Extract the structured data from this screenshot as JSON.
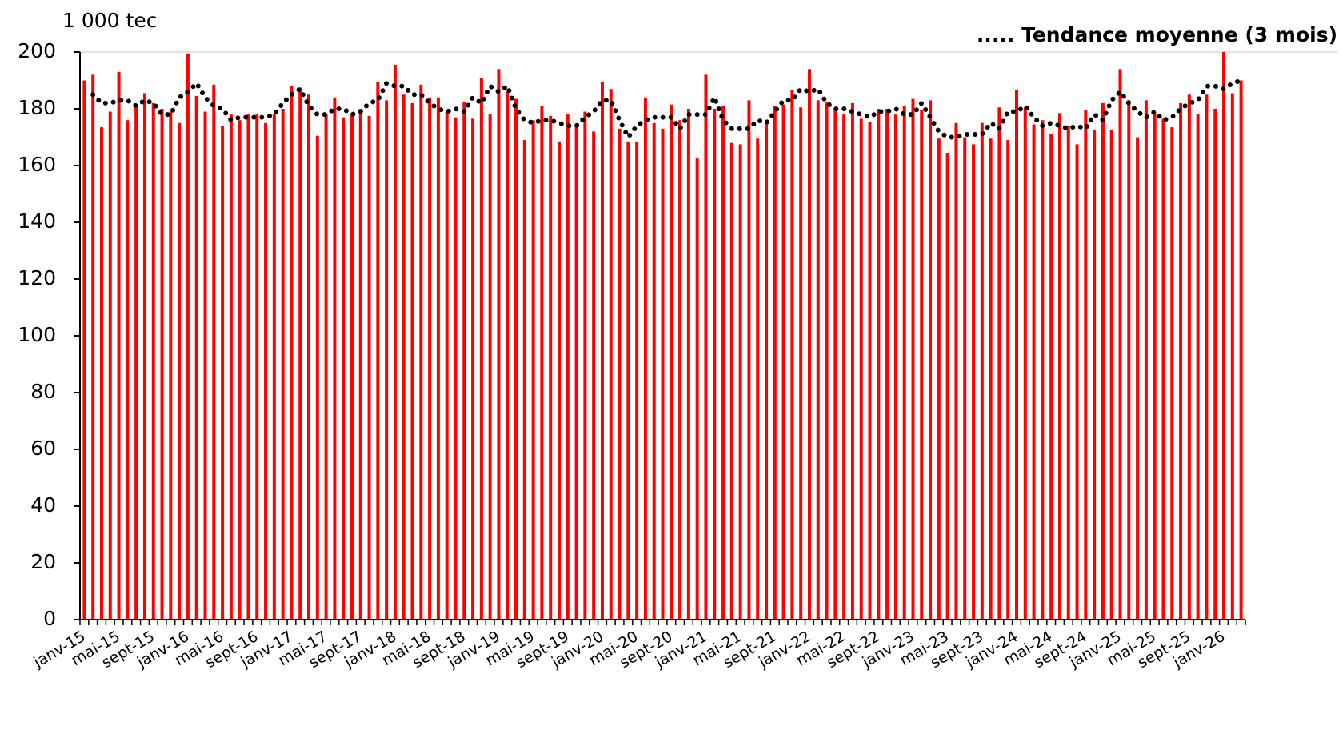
{
  "chart_data": {
    "type": "bar",
    "y_unit_label": "1 000 tec",
    "categories": [
      "janv-15",
      null,
      null,
      null,
      "mai-15",
      null,
      null,
      null,
      "sept-15",
      null,
      null,
      null,
      "janv-16",
      null,
      null,
      null,
      "mai-16",
      null,
      null,
      null,
      "sept-16",
      null,
      null,
      null,
      "janv-17",
      null,
      null,
      null,
      "mai-17",
      null,
      null,
      null,
      "sept-17",
      null,
      null,
      null,
      "janv-18",
      null,
      null,
      null,
      "mai-18",
      null,
      null,
      null,
      "sept-18",
      null,
      null,
      null,
      "janv-19",
      null,
      null,
      null,
      "mai-19",
      null,
      null,
      null,
      "sept-19",
      null,
      null,
      null,
      "janv-20",
      null,
      null,
      null,
      "mai-20",
      null,
      null,
      null,
      "sept-20",
      null,
      null,
      null,
      "janv-21",
      null,
      null,
      null,
      "mai-21",
      null,
      null,
      null,
      "sept-21",
      null,
      null,
      null,
      "janv-22",
      null,
      null,
      null,
      "mai-22",
      null,
      null,
      null,
      "sept-22",
      null,
      null,
      null,
      "janv-23",
      null,
      null,
      null,
      "mai-23",
      null,
      null,
      null,
      "sept-23",
      null,
      null,
      null,
      "janv-24",
      null,
      null,
      null,
      "mai-24",
      null,
      null,
      null,
      "sept-24",
      null,
      null,
      null,
      "janv-25",
      null,
      null,
      null,
      "mai-25",
      null,
      null,
      null,
      "sept-25",
      null,
      null,
      null,
      "janv-26",
      null,
      null
    ],
    "series": [
      {
        "color": "#ff0000",
        "values": [
          190,
          192,
          173.5,
          179,
          193,
          176,
          181,
          185.5,
          182,
          180,
          179,
          175,
          199.5,
          184.5,
          179,
          188.5,
          174,
          178,
          176,
          178,
          178,
          175,
          178,
          180,
          188,
          187.5,
          185,
          170.5,
          178,
          184,
          177,
          178,
          180,
          177.5,
          189.5,
          183,
          195.5,
          185,
          182,
          188.5,
          184,
          184,
          179,
          177,
          182.5,
          176.5,
          191,
          178,
          194,
          186,
          183.5,
          169,
          176,
          181,
          177.5,
          168.5,
          178,
          174,
          179,
          172,
          189.5,
          187,
          173,
          168.5,
          168.5,
          184,
          175,
          173,
          181.5,
          176,
          180,
          162.5,
          192,
          180,
          181,
          168,
          167.5,
          183,
          169.5,
          175,
          181,
          181.5,
          186.5,
          180.5,
          194,
          183,
          182.5,
          180,
          178,
          182,
          176.5,
          175.5,
          180,
          180,
          178,
          181,
          183.5,
          179.5,
          183,
          169.5,
          164.5,
          175,
          170,
          167.5,
          175,
          169.5,
          180.5,
          169,
          186.5,
          180.5,
          174.5,
          176,
          171,
          178.5,
          174,
          167.5,
          179.5,
          172.5,
          182,
          172.5,
          194,
          183,
          170,
          183,
          178,
          176.5,
          173.5,
          182,
          185,
          178,
          185,
          180,
          200,
          185.5,
          190
        ]
      },
      {
        "name": "..... Tendance moyenne (3 mois)",
        "color": "#000000",
        "style": "dotted",
        "values": [
          null,
          185,
          182,
          182,
          183,
          183,
          181,
          183,
          182,
          178,
          178,
          184,
          186,
          189,
          184,
          181,
          180,
          176,
          177,
          177,
          177,
          177,
          178,
          182,
          185,
          187,
          181,
          178,
          178,
          180,
          180,
          178,
          179,
          182,
          183,
          189,
          188,
          188,
          185,
          185,
          182,
          180,
          179,
          180,
          179,
          184,
          182,
          188,
          186,
          188,
          180,
          176,
          175,
          176,
          176,
          175,
          174,
          174,
          177,
          179,
          183,
          183,
          176,
          170,
          174,
          176,
          177,
          177,
          177,
          173,
          178,
          178,
          178,
          184,
          176,
          173,
          173,
          173,
          176,
          175,
          179,
          183,
          183,
          187,
          186,
          187,
          182,
          180,
          180,
          179,
          178,
          177,
          179,
          179,
          180,
          178,
          178,
          182,
          177,
          172,
          170,
          170,
          171,
          171,
          171,
          175,
          173,
          179,
          179,
          181,
          177,
          174,
          175,
          174,
          173,
          174,
          173,
          178,
          176,
          183,
          186,
          182,
          179,
          177,
          179,
          176,
          177,
          180,
          182,
          183,
          188,
          188,
          187,
          189,
          190
        ]
      }
    ],
    "ylim": [
      0,
      200
    ],
    "yticks": [
      0,
      20,
      40,
      60,
      80,
      100,
      120,
      140,
      160,
      180,
      200
    ],
    "grid": false,
    "legend": "top-right"
  }
}
